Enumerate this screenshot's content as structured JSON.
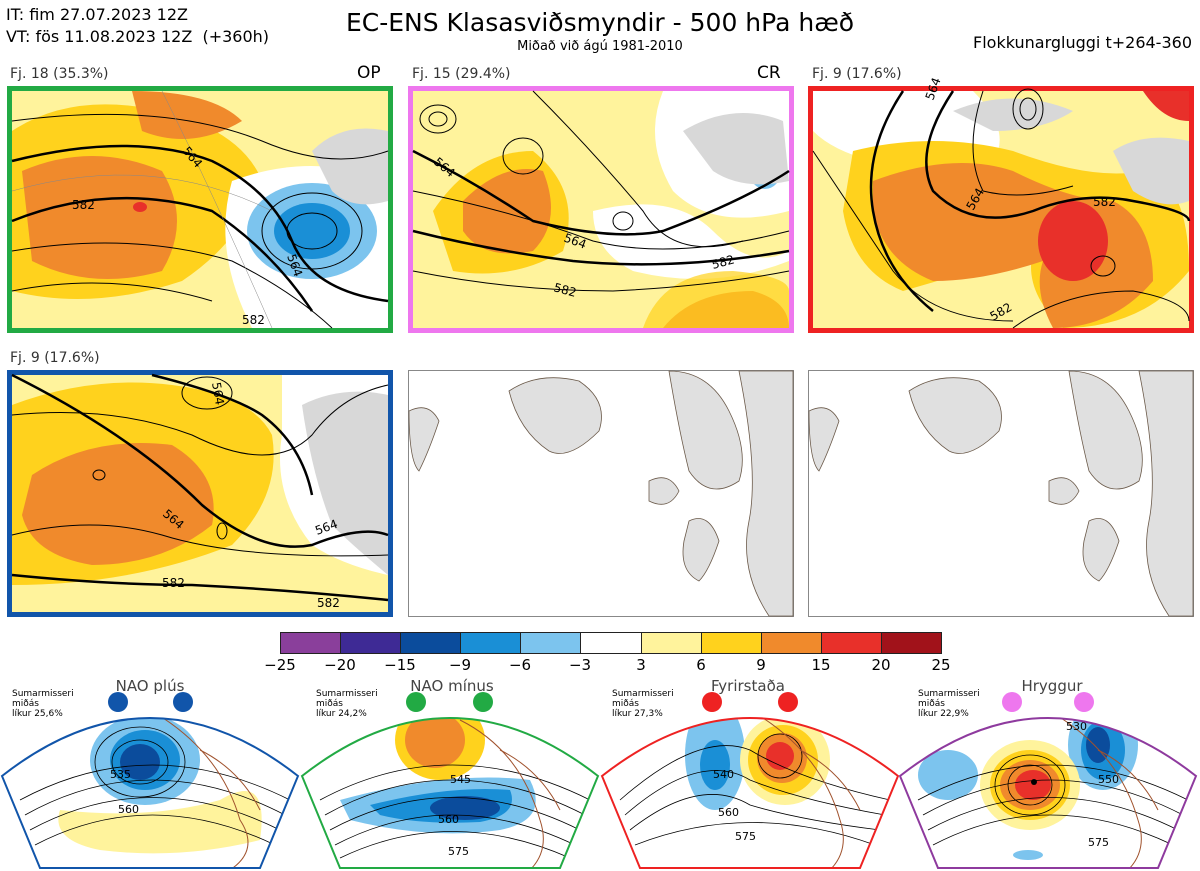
{
  "header": {
    "it_line": "IT: fim 27.07.2023 12Z",
    "vt_line": "VT: fös 11.08.2023 12Z  (+360h)",
    "title": "EC-ENS Klasasviðsmyndir - 500 hPa hæð",
    "subtitle": "Miðað við ágú 1981-2010",
    "window": "Flokkunargluggi t+264-360"
  },
  "panels": [
    {
      "label": "Fj. 18 (35.3%)",
      "tag": "OP",
      "border_color": "#22aa44",
      "contours": [
        "564",
        "582",
        "582",
        "564"
      ]
    },
    {
      "label": "Fj. 15 (29.4%)",
      "tag": "CR",
      "border_color": "#ee77ee",
      "contours": [
        "564",
        "564",
        "582",
        "582"
      ]
    },
    {
      "label": "Fj. 9 (17.6%)",
      "tag": "",
      "border_color": "#ee2222",
      "contours": [
        "564",
        "564",
        "582",
        "582"
      ]
    },
    {
      "label": "Fj. 9 (17.6%)",
      "tag": "",
      "border_color": "#1155aa",
      "contours": [
        "564",
        "564",
        "564",
        "582",
        "582"
      ]
    }
  ],
  "colorbar": {
    "ticks": [
      "−25",
      "−20",
      "−15",
      "−9",
      "−6",
      "−3",
      "3",
      "6",
      "9",
      "15",
      "20",
      "25"
    ],
    "colors": [
      "#8a3f9b",
      "#3e2a95",
      "#0b4c9c",
      "#1a8fd6",
      "#7cc4ee",
      "#ffffff",
      "#fff39c",
      "#ffd21d",
      "#f08a2c",
      "#e8302a",
      "#a1121a"
    ]
  },
  "regimes": [
    {
      "name": "NAO plús",
      "season": "Sumarmisseri\nmiðás\nlíkur 25,6%",
      "color": "#1155aa",
      "contours": [
        "535",
        "560"
      ]
    },
    {
      "name": "NAO mínus",
      "season": "Sumarmisseri\nmiðás\nlíkur 24,2%",
      "color": "#22aa44",
      "contours": [
        "545",
        "560",
        "575"
      ]
    },
    {
      "name": "Fyrirstaða",
      "season": "Sumarmisseri\nmiðás\nlíkur 27,3%",
      "color": "#ee2222",
      "contours": [
        "540",
        "560",
        "575"
      ]
    },
    {
      "name": "Hryggur",
      "season": "Sumarmisseri\nmiðás\nlíkur 22,9%",
      "color": "#ee77ee",
      "contours": [
        "530",
        "550",
        "575"
      ]
    }
  ]
}
